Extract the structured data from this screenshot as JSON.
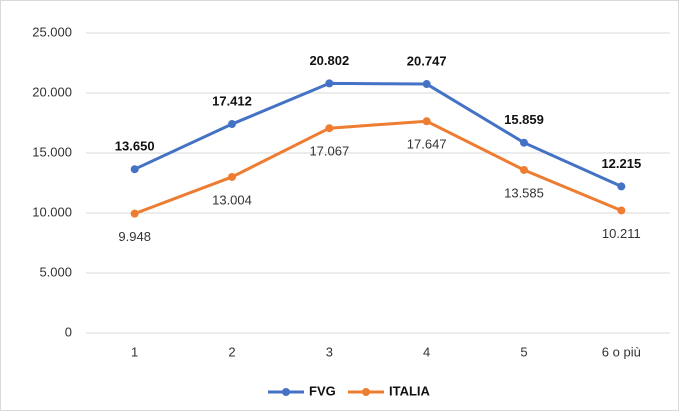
{
  "chart_data": {
    "type": "line",
    "categories": [
      "1",
      "2",
      "3",
      "4",
      "5",
      "6 o più"
    ],
    "series": [
      {
        "name": "FVG",
        "color": "#4472c4",
        "values": [
          13650,
          17412,
          20802,
          20747,
          15859,
          12215
        ],
        "value_labels": [
          "13.650",
          "17.412",
          "20.802",
          "20.747",
          "15.859",
          "12.215"
        ]
      },
      {
        "name": "ITALIA",
        "color": "#ed7d31",
        "values": [
          9948,
          13004,
          17067,
          17647,
          13585,
          10211
        ],
        "value_labels": [
          "9.948",
          "13.004",
          "17.067",
          "17.647",
          "13.585",
          "10.211"
        ]
      }
    ],
    "ylim": [
      0,
      25000
    ],
    "yticks": [
      {
        "value": 0,
        "label": "0"
      },
      {
        "value": 5000,
        "label": "5.000"
      },
      {
        "value": 10000,
        "label": "10.000"
      },
      {
        "value": 15000,
        "label": "15.000"
      },
      {
        "value": 20000,
        "label": "20.000"
      },
      {
        "value": 25000,
        "label": "25.000"
      }
    ],
    "grid": true,
    "legend": "bottom"
  }
}
